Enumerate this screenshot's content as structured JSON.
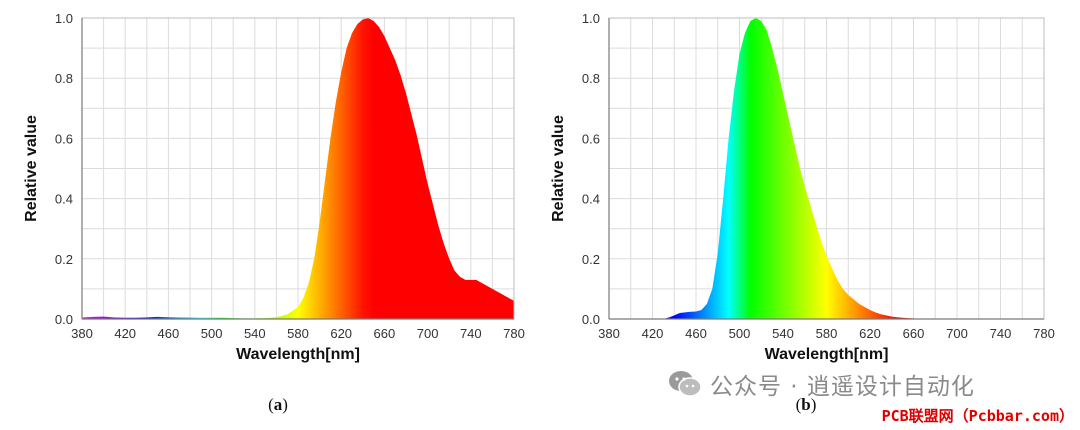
{
  "chart_data": [
    {
      "id": "a",
      "type": "area",
      "panel_label": "(a)",
      "xlabel": "Wavelength[nm]",
      "ylabel": "Relative value",
      "xlim": [
        380,
        780
      ],
      "ylim": [
        0,
        1.0
      ],
      "xticks": [
        "380",
        "420",
        "460",
        "500",
        "540",
        "580",
        "620",
        "660",
        "700",
        "740",
        "780"
      ],
      "yticks": [
        "0.0",
        "0.2",
        "0.4",
        "0.6",
        "0.8",
        "1.0"
      ],
      "grid": true,
      "fill": "spectral color gradient",
      "x": [
        380,
        390,
        400,
        410,
        420,
        430,
        440,
        450,
        460,
        470,
        480,
        490,
        500,
        510,
        520,
        530,
        540,
        550,
        560,
        570,
        580,
        585,
        590,
        595,
        600,
        605,
        610,
        615,
        620,
        625,
        630,
        635,
        640,
        645,
        650,
        655,
        660,
        665,
        670,
        675,
        680,
        685,
        690,
        695,
        700,
        705,
        710,
        715,
        720,
        725,
        730,
        735,
        740,
        745,
        750,
        755,
        760,
        770,
        780
      ],
      "y": [
        0.005,
        0.007,
        0.008,
        0.005,
        0.004,
        0.004,
        0.005,
        0.007,
        0.006,
        0.005,
        0.005,
        0.004,
        0.004,
        0.004,
        0.003,
        0.002,
        0.002,
        0.003,
        0.006,
        0.015,
        0.04,
        0.07,
        0.12,
        0.2,
        0.32,
        0.46,
        0.6,
        0.72,
        0.82,
        0.9,
        0.95,
        0.98,
        0.995,
        1.0,
        0.99,
        0.97,
        0.94,
        0.9,
        0.86,
        0.81,
        0.75,
        0.68,
        0.61,
        0.53,
        0.45,
        0.38,
        0.31,
        0.25,
        0.2,
        0.16,
        0.14,
        0.13,
        0.13,
        0.13,
        0.12,
        0.11,
        0.1,
        0.08,
        0.06
      ]
    },
    {
      "id": "b",
      "type": "area",
      "panel_label": "(b)",
      "xlabel": "Wavelength[nm]",
      "ylabel": "Relative value",
      "xlim": [
        380,
        780
      ],
      "ylim": [
        0,
        1.0
      ],
      "xticks": [
        "380",
        "420",
        "460",
        "500",
        "540",
        "580",
        "620",
        "660",
        "700",
        "740",
        "780"
      ],
      "yticks": [
        "0.0",
        "0.2",
        "0.4",
        "0.6",
        "0.8",
        "1.0"
      ],
      "grid": true,
      "fill": "spectral color gradient",
      "x": [
        430,
        435,
        440,
        445,
        450,
        455,
        460,
        465,
        470,
        475,
        480,
        485,
        490,
        495,
        500,
        505,
        510,
        515,
        520,
        525,
        530,
        535,
        540,
        545,
        550,
        555,
        560,
        565,
        570,
        575,
        580,
        585,
        590,
        595,
        600,
        605,
        610,
        615,
        620,
        625,
        630,
        635,
        640,
        645,
        650,
        655,
        660,
        665,
        670
      ],
      "y": [
        0.0,
        0.005,
        0.012,
        0.02,
        0.022,
        0.024,
        0.025,
        0.03,
        0.05,
        0.1,
        0.22,
        0.4,
        0.6,
        0.76,
        0.88,
        0.95,
        0.99,
        1.0,
        0.99,
        0.96,
        0.9,
        0.83,
        0.75,
        0.67,
        0.59,
        0.51,
        0.44,
        0.38,
        0.32,
        0.26,
        0.21,
        0.17,
        0.13,
        0.1,
        0.08,
        0.065,
        0.05,
        0.04,
        0.03,
        0.022,
        0.016,
        0.012,
        0.008,
        0.006,
        0.004,
        0.003,
        0.002,
        0.001,
        0.0
      ]
    }
  ],
  "watermark": {
    "text": "公众号 · 逍遥设计自动化",
    "icon": "wechat-icon"
  },
  "footer": {
    "text": "PCB联盟网（Pcbbar.com）"
  }
}
